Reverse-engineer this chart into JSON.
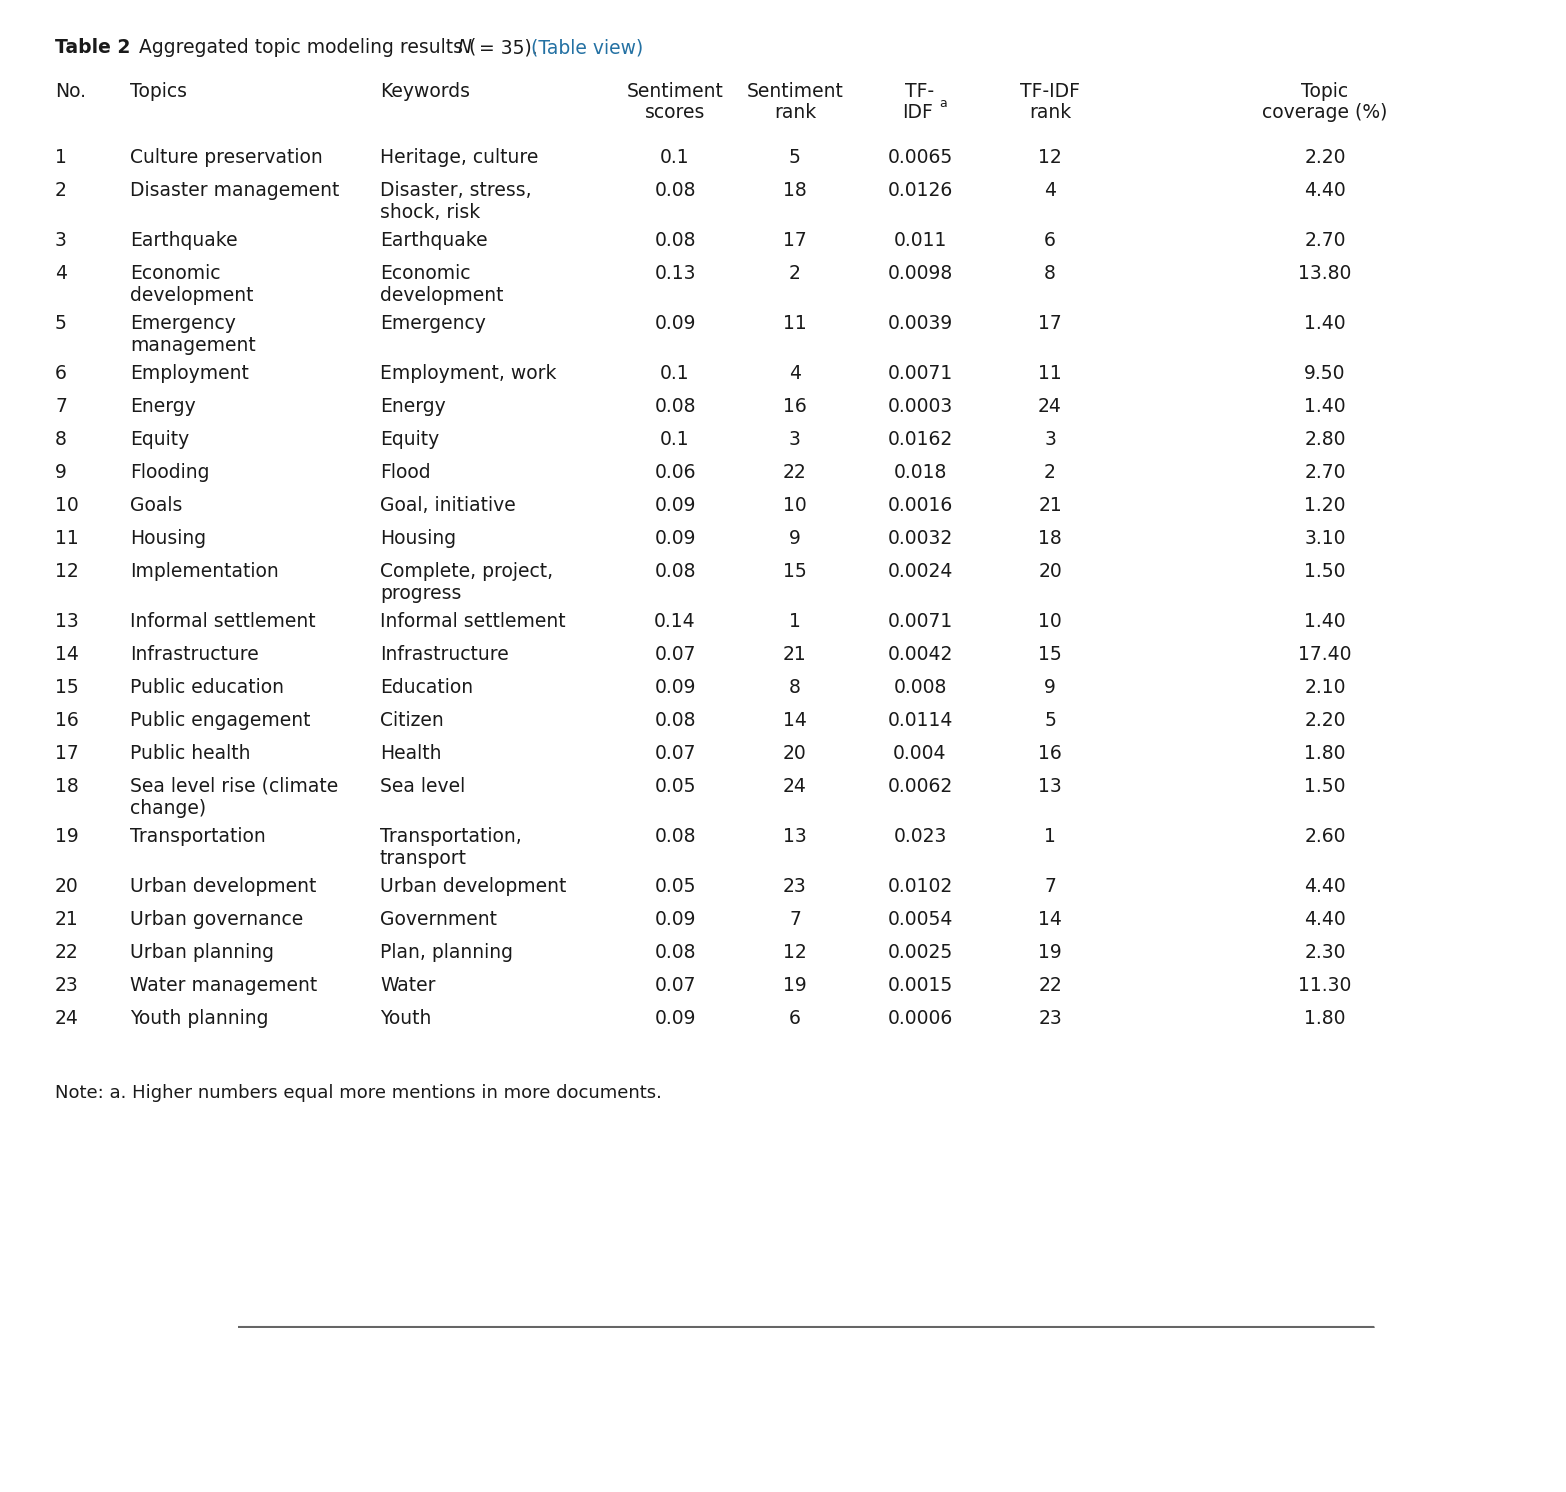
{
  "rows": [
    {
      "no": "1",
      "topic": "Culture preservation",
      "keywords": "Heritage, culture",
      "sent_score": "0.1",
      "sent_rank": "5",
      "tfidf": "0.0065",
      "tfidf_rank": "12",
      "coverage": "2.20"
    },
    {
      "no": "2",
      "topic": "Disaster management",
      "keywords": "Disaster, stress,\nshock, risk",
      "sent_score": "0.08",
      "sent_rank": "18",
      "tfidf": "0.0126",
      "tfidf_rank": "4",
      "coverage": "4.40"
    },
    {
      "no": "3",
      "topic": "Earthquake",
      "keywords": "Earthquake",
      "sent_score": "0.08",
      "sent_rank": "17",
      "tfidf": "0.011",
      "tfidf_rank": "6",
      "coverage": "2.70"
    },
    {
      "no": "4",
      "topic": "Economic\ndevelopment",
      "keywords": "Economic\ndevelopment",
      "sent_score": "0.13",
      "sent_rank": "2",
      "tfidf": "0.0098",
      "tfidf_rank": "8",
      "coverage": "13.80"
    },
    {
      "no": "5",
      "topic": "Emergency\nmanagement",
      "keywords": "Emergency",
      "sent_score": "0.09",
      "sent_rank": "11",
      "tfidf": "0.0039",
      "tfidf_rank": "17",
      "coverage": "1.40"
    },
    {
      "no": "6",
      "topic": "Employment",
      "keywords": "Employment, work",
      "sent_score": "0.1",
      "sent_rank": "4",
      "tfidf": "0.0071",
      "tfidf_rank": "11",
      "coverage": "9.50"
    },
    {
      "no": "7",
      "topic": "Energy",
      "keywords": "Energy",
      "sent_score": "0.08",
      "sent_rank": "16",
      "tfidf": "0.0003",
      "tfidf_rank": "24",
      "coverage": "1.40"
    },
    {
      "no": "8",
      "topic": "Equity",
      "keywords": "Equity",
      "sent_score": "0.1",
      "sent_rank": "3",
      "tfidf": "0.0162",
      "tfidf_rank": "3",
      "coverage": "2.80"
    },
    {
      "no": "9",
      "topic": "Flooding",
      "keywords": "Flood",
      "sent_score": "0.06",
      "sent_rank": "22",
      "tfidf": "0.018",
      "tfidf_rank": "2",
      "coverage": "2.70"
    },
    {
      "no": "10",
      "topic": "Goals",
      "keywords": "Goal, initiative",
      "sent_score": "0.09",
      "sent_rank": "10",
      "tfidf": "0.0016",
      "tfidf_rank": "21",
      "coverage": "1.20"
    },
    {
      "no": "11",
      "topic": "Housing",
      "keywords": "Housing",
      "sent_score": "0.09",
      "sent_rank": "9",
      "tfidf": "0.0032",
      "tfidf_rank": "18",
      "coverage": "3.10"
    },
    {
      "no": "12",
      "topic": "Implementation",
      "keywords": "Complete, project,\nprogress",
      "sent_score": "0.08",
      "sent_rank": "15",
      "tfidf": "0.0024",
      "tfidf_rank": "20",
      "coverage": "1.50"
    },
    {
      "no": "13",
      "topic": "Informal settlement",
      "keywords": "Informal settlement",
      "sent_score": "0.14",
      "sent_rank": "1",
      "tfidf": "0.0071",
      "tfidf_rank": "10",
      "coverage": "1.40"
    },
    {
      "no": "14",
      "topic": "Infrastructure",
      "keywords": "Infrastructure",
      "sent_score": "0.07",
      "sent_rank": "21",
      "tfidf": "0.0042",
      "tfidf_rank": "15",
      "coverage": "17.40"
    },
    {
      "no": "15",
      "topic": "Public education",
      "keywords": "Education",
      "sent_score": "0.09",
      "sent_rank": "8",
      "tfidf": "0.008",
      "tfidf_rank": "9",
      "coverage": "2.10"
    },
    {
      "no": "16",
      "topic": "Public engagement",
      "keywords": "Citizen",
      "sent_score": "0.08",
      "sent_rank": "14",
      "tfidf": "0.0114",
      "tfidf_rank": "5",
      "coverage": "2.20"
    },
    {
      "no": "17",
      "topic": "Public health",
      "keywords": "Health",
      "sent_score": "0.07",
      "sent_rank": "20",
      "tfidf": "0.004",
      "tfidf_rank": "16",
      "coverage": "1.80"
    },
    {
      "no": "18",
      "topic": "Sea level rise (climate\nchange)",
      "keywords": "Sea level",
      "sent_score": "0.05",
      "sent_rank": "24",
      "tfidf": "0.0062",
      "tfidf_rank": "13",
      "coverage": "1.50"
    },
    {
      "no": "19",
      "topic": "Transportation",
      "keywords": "Transportation,\ntransport",
      "sent_score": "0.08",
      "sent_rank": "13",
      "tfidf": "0.023",
      "tfidf_rank": "1",
      "coverage": "2.60"
    },
    {
      "no": "20",
      "topic": "Urban development",
      "keywords": "Urban development",
      "sent_score": "0.05",
      "sent_rank": "23",
      "tfidf": "0.0102",
      "tfidf_rank": "7",
      "coverage": "4.40"
    },
    {
      "no": "21",
      "topic": "Urban governance",
      "keywords": "Government",
      "sent_score": "0.09",
      "sent_rank": "7",
      "tfidf": "0.0054",
      "tfidf_rank": "14",
      "coverage": "4.40"
    },
    {
      "no": "22",
      "topic": "Urban planning",
      "keywords": "Plan, planning",
      "sent_score": "0.08",
      "sent_rank": "12",
      "tfidf": "0.0025",
      "tfidf_rank": "19",
      "coverage": "2.30"
    },
    {
      "no": "23",
      "topic": "Water management",
      "keywords": "Water",
      "sent_score": "0.07",
      "sent_rank": "19",
      "tfidf": "0.0015",
      "tfidf_rank": "22",
      "coverage": "11.30"
    },
    {
      "no": "24",
      "topic": "Youth planning",
      "keywords": "Youth",
      "sent_score": "0.09",
      "sent_rank": "6",
      "tfidf": "0.0006",
      "tfidf_rank": "23",
      "coverage": "1.80"
    }
  ],
  "note": "Note: a. Higher numbers equal more mentions in more documents.",
  "background_color": "#ffffff",
  "text_color": "#1a1a1a",
  "link_color": "#2471a3",
  "line_color": "#666666",
  "fig_width": 15.66,
  "fig_height": 14.92,
  "dpi": 100
}
